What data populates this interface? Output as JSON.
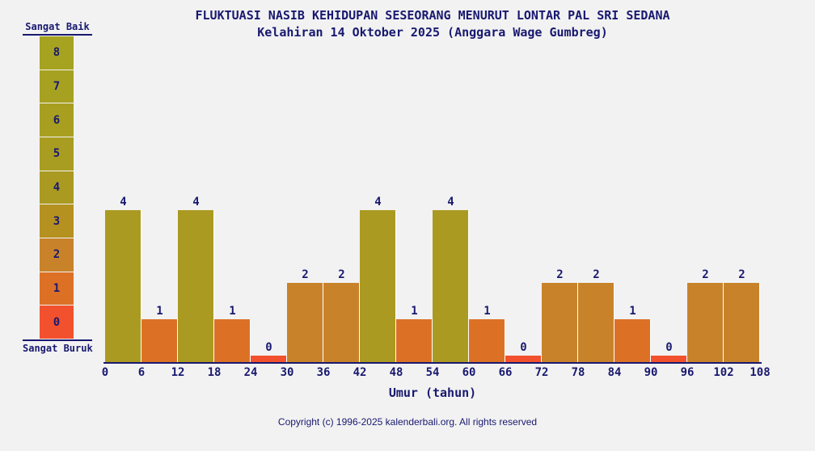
{
  "title": "FLUKTUASI NASIB KEHIDUPAN SESEORANG MENURUT LONTAR PAL SRI SEDANA",
  "subtitle": "Kelahiran 14 Oktober 2025 (Anggara Wage Gumbreg)",
  "footer": "Copyright (c) 1996-2025 kalenderbali.org. All rights reserved",
  "colors": {
    "background": "#f2f2f2",
    "text": "#191970",
    "axis": "#191970",
    "value_colors": {
      "8": "#a6a320",
      "7": "#a7a121",
      "6": "#a89f21",
      "5": "#a99d21",
      "4": "#ab9a22",
      "3": "#b59120",
      "2": "#c8832a",
      "1": "#dc7125",
      "0": "#f1512c"
    }
  },
  "legend": {
    "top_label": "Sangat Baik",
    "bottom_label": "Sangat Buruk",
    "levels": [
      8,
      7,
      6,
      5,
      4,
      3,
      2,
      1,
      0
    ]
  },
  "chart_data": {
    "type": "bar",
    "title": "FLUKTUASI NASIB KEHIDUPAN SESEORANG MENURUT LONTAR PAL SRI SEDANA",
    "subtitle": "Kelahiran 14 Oktober 2025 (Anggara Wage Gumbreg)",
    "xlabel": "Umur (tahun)",
    "ylabel": "",
    "bin_width_years": 6,
    "x_ticks": [
      0,
      6,
      12,
      18,
      24,
      30,
      36,
      42,
      48,
      54,
      60,
      66,
      72,
      78,
      84,
      90,
      96,
      102,
      108
    ],
    "age_bins": [
      "0-6",
      "6-12",
      "12-18",
      "18-24",
      "24-30",
      "30-36",
      "36-42",
      "42-48",
      "48-54",
      "54-60",
      "60-66",
      "66-72",
      "72-78",
      "78-84",
      "84-90",
      "90-96",
      "96-102",
      "102-108"
    ],
    "values": [
      4,
      1,
      4,
      1,
      0,
      2,
      2,
      4,
      1,
      4,
      1,
      0,
      2,
      2,
      1,
      0,
      2,
      2
    ],
    "ylim": [
      0,
      8
    ],
    "grid": false,
    "legend_position": "left",
    "scale_labels": {
      "best": "Sangat Baik",
      "worst": "Sangat Buruk"
    }
  }
}
